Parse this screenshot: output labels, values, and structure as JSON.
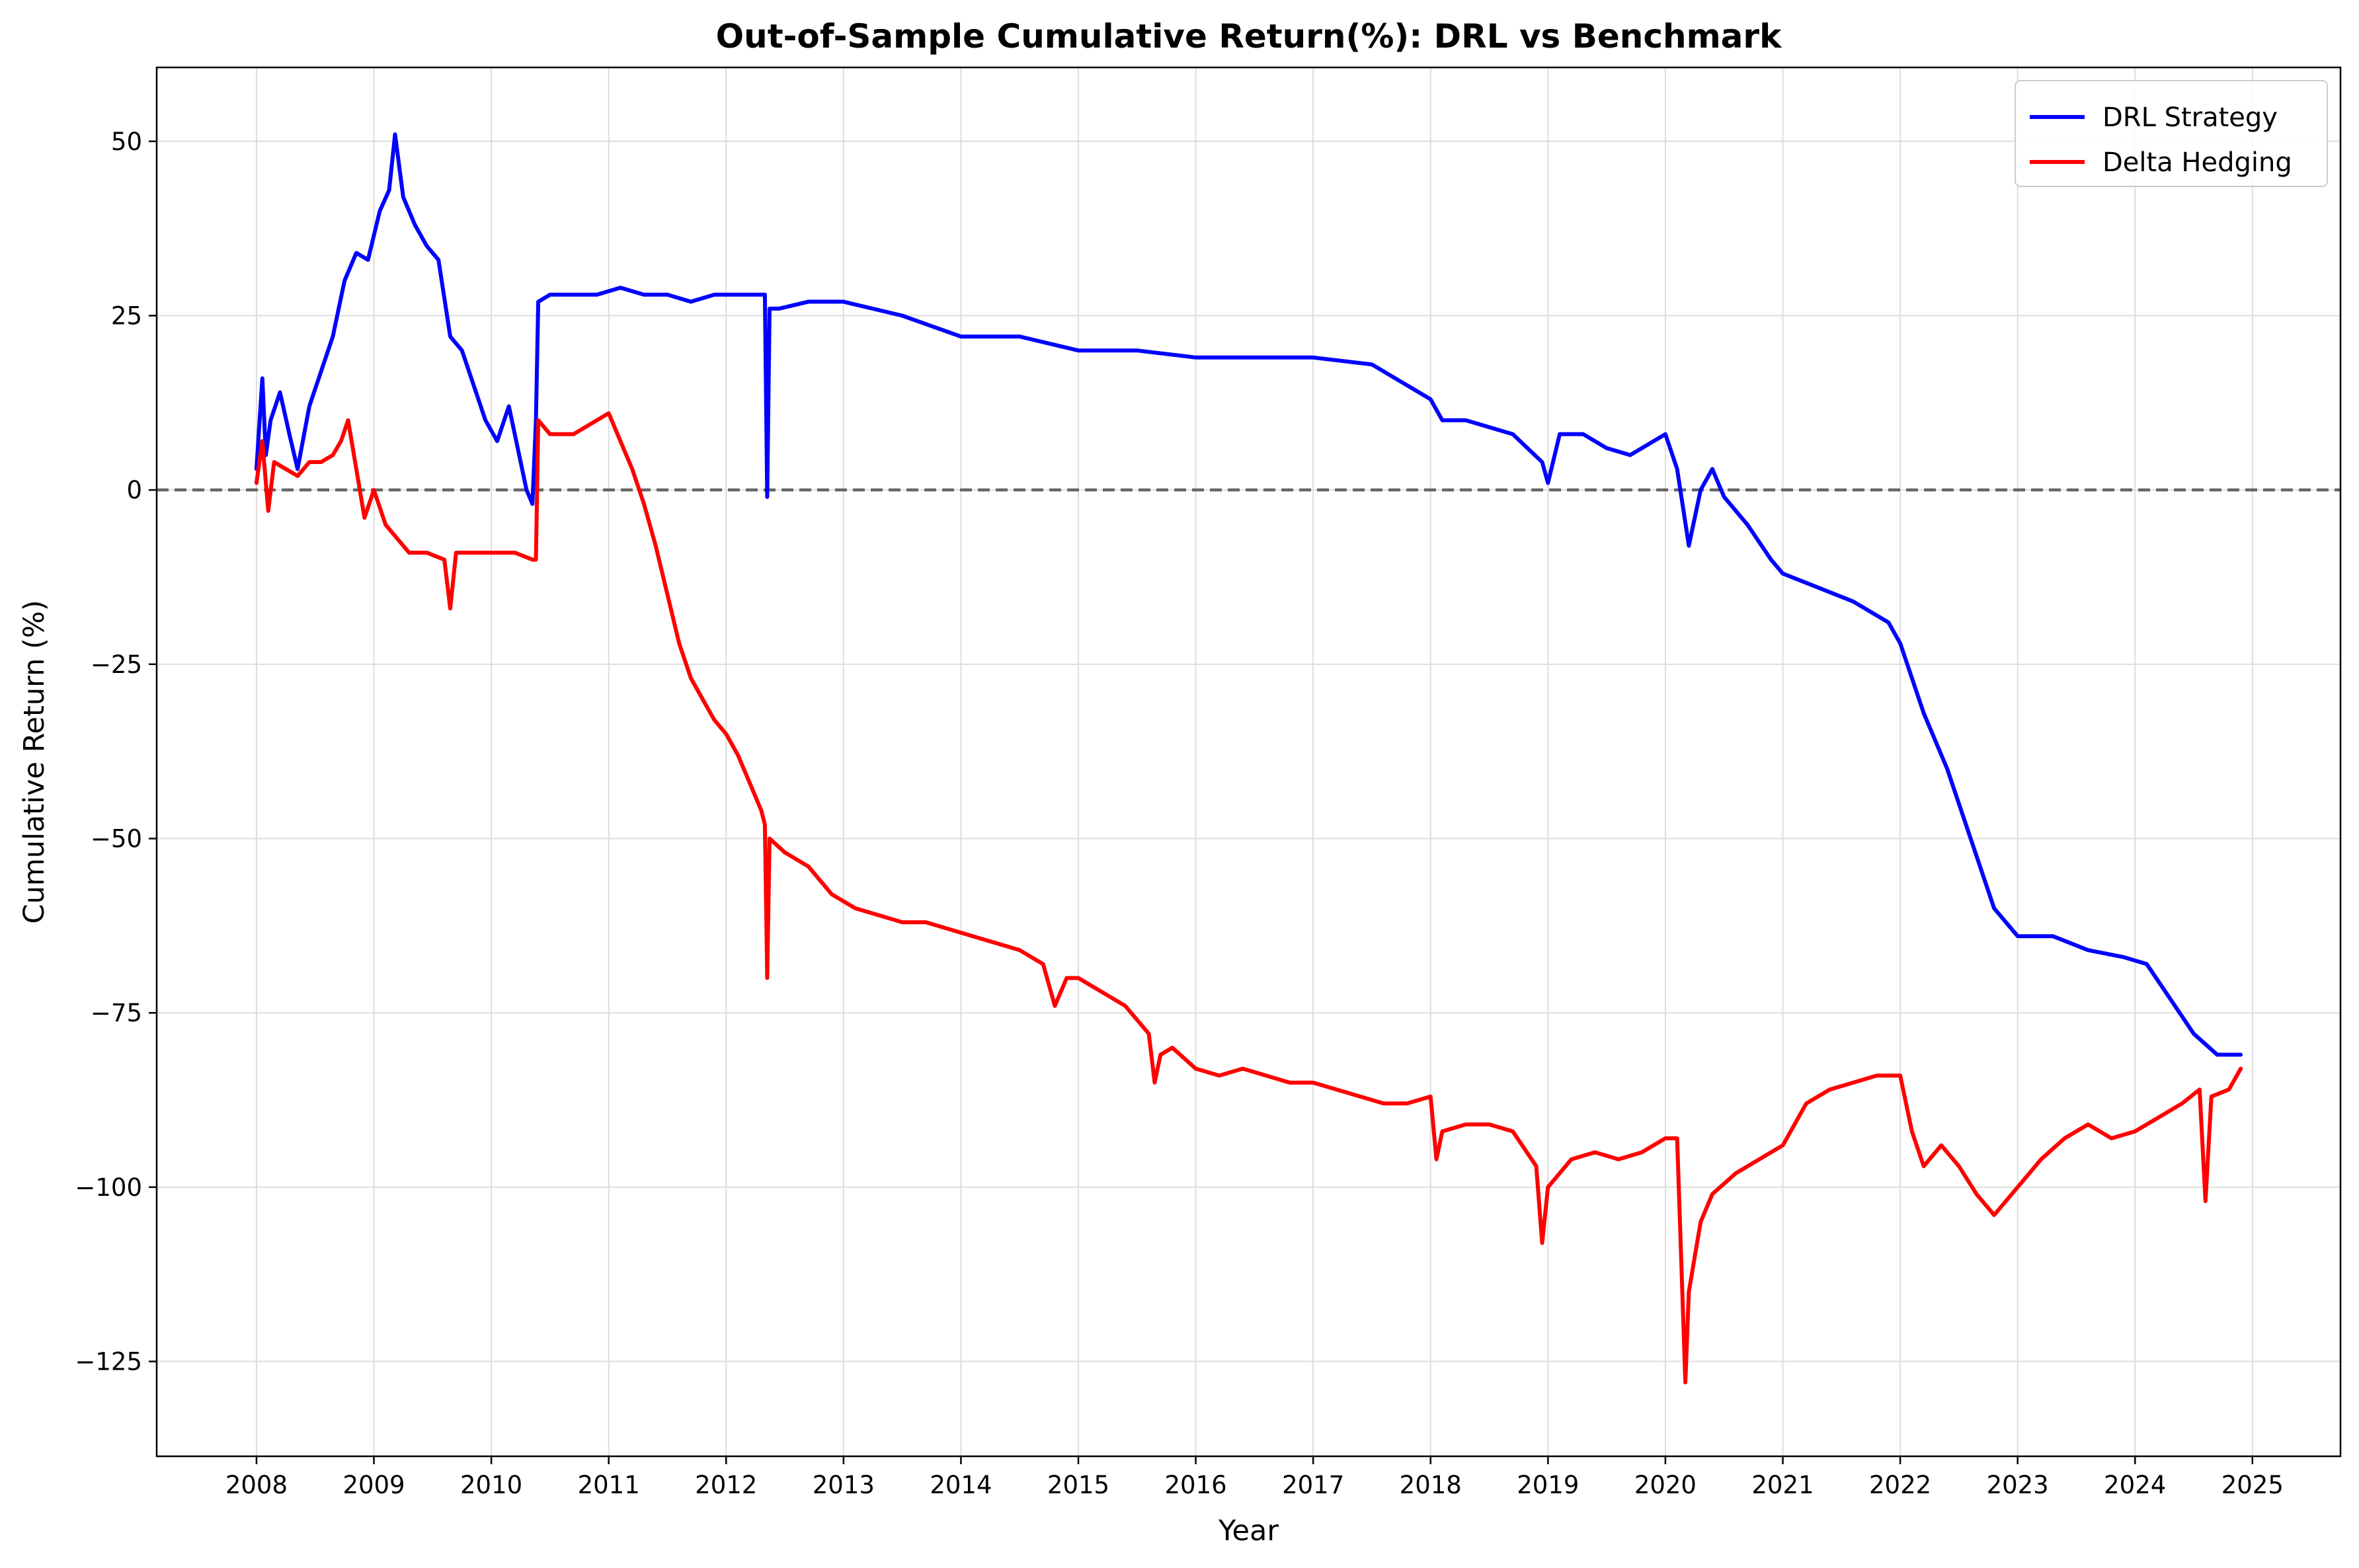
{
  "chart_data": {
    "type": "line",
    "title": "Out-of-Sample Cumulative Return(%): DRL vs Benchmark",
    "xlabel": "Year",
    "ylabel": "Cumulative Return (%)",
    "xlim": [
      2007.15,
      2025.75
    ],
    "ylim": [
      -138.6,
      60.6
    ],
    "grid": true,
    "legend": "top-right",
    "xticks": [
      2008,
      2009,
      2010,
      2011,
      2012,
      2013,
      2014,
      2015,
      2016,
      2017,
      2018,
      2019,
      2020,
      2021,
      2022,
      2023,
      2024,
      2025
    ],
    "yticks": [
      50,
      25,
      0,
      -25,
      -50,
      -75,
      -100,
      -125
    ],
    "xtick_labels": [
      "2008",
      "2009",
      "2010",
      "2011",
      "2012",
      "2013",
      "2014",
      "2015",
      "2016",
      "2017",
      "2018",
      "2019",
      "2020",
      "2021",
      "2022",
      "2023",
      "2024",
      "2025"
    ],
    "ytick_labels": [
      "50",
      "25",
      "0",
      "−25",
      "−50",
      "−75",
      "−100",
      "−125"
    ],
    "reference_line": {
      "y": 0,
      "style": "dashed",
      "color": "#666666"
    },
    "series": [
      {
        "name": "DRL Strategy",
        "color": "#0000ff",
        "x": [
          2008.0,
          2008.05,
          2008.08,
          2008.12,
          2008.2,
          2008.28,
          2008.35,
          2008.45,
          2008.55,
          2008.65,
          2008.75,
          2008.85,
          2008.95,
          2009.05,
          2009.13,
          2009.18,
          2009.25,
          2009.35,
          2009.45,
          2009.55,
          2009.65,
          2009.75,
          2009.85,
          2009.95,
          2010.05,
          2010.15,
          2010.25,
          2010.3,
          2010.35,
          2010.38,
          2010.4,
          2010.5,
          2010.7,
          2010.9,
          2011.1,
          2011.3,
          2011.5,
          2011.7,
          2011.9,
          2012.1,
          2012.3,
          2012.33,
          2012.35,
          2012.37,
          2012.45,
          2012.7,
          2013.0,
          2013.5,
          2014.0,
          2014.5,
          2015.0,
          2015.5,
          2016.0,
          2016.5,
          2017.0,
          2017.5,
          2018.0,
          2018.1,
          2018.3,
          2018.7,
          2018.95,
          2019.0,
          2019.1,
          2019.3,
          2019.5,
          2019.7,
          2019.9,
          2020.0,
          2020.1,
          2020.2,
          2020.3,
          2020.4,
          2020.5,
          2020.7,
          2020.9,
          2021.0,
          2021.3,
          2021.6,
          2021.9,
          2022.0,
          2022.2,
          2022.4,
          2022.6,
          2022.8,
          2023.0,
          2023.3,
          2023.6,
          2023.9,
          2024.1,
          2024.3,
          2024.5,
          2024.7,
          2024.9
        ],
        "y": [
          3,
          16,
          5,
          10,
          14,
          8,
          3,
          12,
          17,
          22,
          30,
          34,
          33,
          40,
          43,
          51,
          42,
          38,
          35,
          33,
          22,
          20,
          15,
          10,
          7,
          12,
          4,
          0,
          -2,
          10,
          27,
          28,
          28,
          28,
          29,
          28,
          28,
          27,
          28,
          28,
          28,
          28,
          -1,
          26,
          26,
          27,
          27,
          25,
          22,
          22,
          20,
          20,
          19,
          19,
          19,
          18,
          13,
          10,
          10,
          8,
          4,
          1,
          8,
          8,
          6,
          5,
          7,
          8,
          3,
          -8,
          0,
          3,
          -1,
          -5,
          -10,
          -12,
          -14,
          -16,
          -19,
          -22,
          -32,
          -40,
          -50,
          -60,
          -64,
          -64,
          -66,
          -67,
          -68,
          -73,
          -78,
          -81,
          -81
        ]
      },
      {
        "name": "Delta Hedging",
        "color": "#ff0000",
        "x": [
          2008.0,
          2008.05,
          2008.1,
          2008.15,
          2008.25,
          2008.35,
          2008.45,
          2008.55,
          2008.65,
          2008.72,
          2008.78,
          2008.85,
          2008.92,
          2009.0,
          2009.1,
          2009.2,
          2009.3,
          2009.45,
          2009.6,
          2009.65,
          2009.7,
          2009.8,
          2010.0,
          2010.2,
          2010.35,
          2010.38,
          2010.4,
          2010.5,
          2010.7,
          2010.9,
          2011.0,
          2011.1,
          2011.2,
          2011.3,
          2011.4,
          2011.5,
          2011.6,
          2011.7,
          2011.8,
          2011.9,
          2012.0,
          2012.1,
          2012.2,
          2012.3,
          2012.33,
          2012.35,
          2012.37,
          2012.5,
          2012.7,
          2012.9,
          2013.1,
          2013.3,
          2013.5,
          2013.7,
          2013.9,
          2014.1,
          2014.3,
          2014.5,
          2014.7,
          2014.8,
          2014.9,
          2015.0,
          2015.2,
          2015.4,
          2015.6,
          2015.65,
          2015.7,
          2015.8,
          2016.0,
          2016.2,
          2016.4,
          2016.6,
          2016.8,
          2017.0,
          2017.2,
          2017.4,
          2017.6,
          2017.8,
          2018.0,
          2018.05,
          2018.1,
          2018.3,
          2018.5,
          2018.7,
          2018.9,
          2018.95,
          2019.0,
          2019.2,
          2019.4,
          2019.6,
          2019.8,
          2020.0,
          2020.1,
          2020.17,
          2020.2,
          2020.3,
          2020.4,
          2020.6,
          2020.8,
          2021.0,
          2021.2,
          2021.4,
          2021.6,
          2021.8,
          2022.0,
          2022.1,
          2022.2,
          2022.35,
          2022.5,
          2022.65,
          2022.8,
          2023.0,
          2023.2,
          2023.4,
          2023.6,
          2023.8,
          2024.0,
          2024.2,
          2024.4,
          2024.55,
          2024.6,
          2024.65,
          2024.8,
          2024.9
        ],
        "y": [
          1,
          7,
          -3,
          4,
          3,
          2,
          4,
          4,
          5,
          7,
          10,
          3,
          -4,
          0,
          -5,
          -7,
          -9,
          -9,
          -10,
          -17,
          -9,
          -9,
          -9,
          -9,
          -10,
          -10,
          10,
          8,
          8,
          10,
          11,
          7,
          3,
          -2,
          -8,
          -15,
          -22,
          -27,
          -30,
          -33,
          -35,
          -38,
          -42,
          -46,
          -48,
          -70,
          -50,
          -52,
          -54,
          -58,
          -60,
          -61,
          -62,
          -62,
          -63,
          -64,
          -65,
          -66,
          -68,
          -74,
          -70,
          -70,
          -72,
          -74,
          -78,
          -85,
          -81,
          -80,
          -83,
          -84,
          -83,
          -84,
          -85,
          -85,
          -86,
          -87,
          -88,
          -88,
          -87,
          -96,
          -92,
          -91,
          -91,
          -92,
          -97,
          -108,
          -100,
          -96,
          -95,
          -96,
          -95,
          -93,
          -93,
          -128,
          -115,
          -105,
          -101,
          -98,
          -96,
          -94,
          -88,
          -86,
          -85,
          -84,
          -84,
          -92,
          -97,
          -94,
          -97,
          -101,
          -104,
          -100,
          -96,
          -93,
          -91,
          -93,
          -92,
          -90,
          -88,
          -86,
          -102,
          -87,
          -86,
          -83
        ]
      }
    ]
  }
}
